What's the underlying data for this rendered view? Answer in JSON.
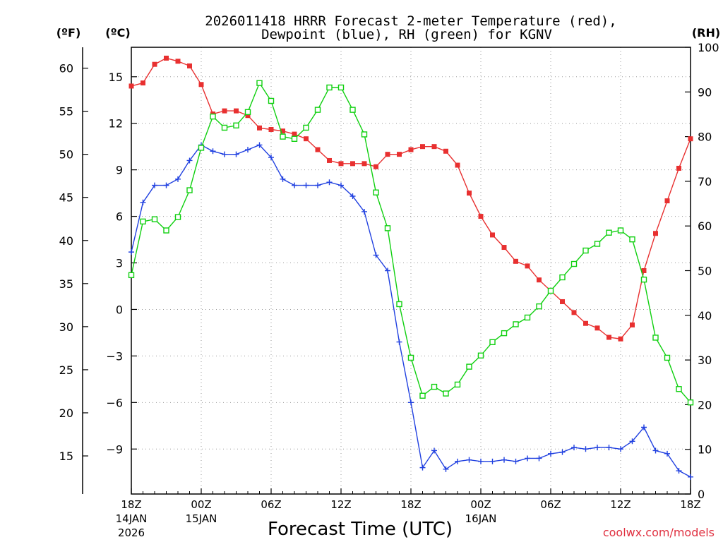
{
  "chart_data": {
    "type": "line",
    "title_line1": "2026011418 HRRR Forecast 2-meter Temperature (red),",
    "title_line2": "Dewpoint (blue), RH (green) for KGNV",
    "xlabel": "Forecast Time (UTC)",
    "credit": "coolwx.com/models",
    "unit_labels": {
      "fahrenheit": "(ºF)",
      "celsius": "(ºC)",
      "rh": "(RH)"
    },
    "forecast_hours": [
      0,
      1,
      2,
      3,
      4,
      5,
      6,
      7,
      8,
      9,
      10,
      11,
      12,
      13,
      14,
      15,
      16,
      17,
      18,
      19,
      20,
      21,
      22,
      23,
      24,
      25,
      26,
      27,
      28,
      29,
      30,
      31,
      32,
      33,
      34,
      35,
      36,
      37,
      38,
      39,
      40,
      41,
      42,
      43,
      44,
      45,
      46,
      47,
      48
    ],
    "x_ticks": [
      {
        "hour": 0,
        "label": "18Z",
        "date": "14JAN",
        "year": "2026"
      },
      {
        "hour": 6,
        "label": "00Z",
        "date": "15JAN",
        "year": ""
      },
      {
        "hour": 12,
        "label": "06Z",
        "date": "",
        "year": ""
      },
      {
        "hour": 18,
        "label": "12Z",
        "date": "",
        "year": ""
      },
      {
        "hour": 24,
        "label": "18Z",
        "date": "",
        "year": ""
      },
      {
        "hour": 30,
        "label": "00Z",
        "date": "16JAN",
        "year": ""
      },
      {
        "hour": 36,
        "label": "06Z",
        "date": "",
        "year": ""
      },
      {
        "hour": 42,
        "label": "12Z",
        "date": "",
        "year": ""
      },
      {
        "hour": 48,
        "label": "18Z",
        "date": "",
        "year": ""
      }
    ],
    "celsius_range": [
      -11.9,
      16.9
    ],
    "celsius_ticks": [
      "15",
      "12",
      "9",
      "6",
      "3",
      "0",
      "-3",
      "-6",
      "-9"
    ],
    "fahrenheit_ticks": [
      "60",
      "55",
      "50",
      "45",
      "40",
      "35",
      "30",
      "25",
      "20",
      "15"
    ],
    "rh_range": [
      0,
      100
    ],
    "rh_ticks": [
      "100",
      "90",
      "80",
      "70",
      "60",
      "50",
      "40",
      "30",
      "20",
      "10",
      "0"
    ],
    "series": [
      {
        "name": "Temperature",
        "unit": "°C",
        "color": "#e83030",
        "marker": "filled-square",
        "values": [
          14.4,
          14.6,
          15.8,
          16.2,
          16.0,
          15.7,
          14.5,
          12.6,
          12.8,
          12.8,
          12.5,
          11.7,
          11.6,
          11.5,
          11.3,
          11.0,
          10.3,
          9.6,
          9.4,
          9.4,
          9.4,
          9.2,
          10.0,
          10.0,
          10.3,
          10.5,
          10.5,
          10.2,
          9.3,
          7.5,
          6.0,
          4.8,
          4.0,
          3.1,
          2.8,
          1.9,
          1.2,
          0.5,
          -0.2,
          -0.9,
          -1.2,
          -1.8,
          -1.9,
          -1.0,
          2.5,
          4.9,
          7.0,
          9.1,
          11.0
        ]
      },
      {
        "name": "Dewpoint",
        "unit": "°C",
        "color": "#2040e0",
        "marker": "plus",
        "values": [
          3.7,
          6.9,
          8.0,
          8.0,
          8.4,
          9.6,
          10.6,
          10.2,
          10.0,
          10.0,
          10.3,
          10.6,
          9.8,
          8.4,
          8.0,
          8.0,
          8.0,
          8.2,
          8.0,
          7.3,
          6.3,
          3.5,
          2.5,
          -2.1,
          -6.0,
          -10.2,
          -9.1,
          -10.3,
          -9.8,
          -9.7,
          -9.8,
          -9.8,
          -9.7,
          -9.8,
          -9.6,
          -9.6,
          -9.3,
          -9.2,
          -8.9,
          -9.0,
          -8.9,
          -8.9,
          -9.0,
          -8.5,
          -7.6,
          -9.1,
          -9.3,
          -10.4,
          -10.8
        ]
      },
      {
        "name": "RH",
        "unit": "%",
        "color": "#10d010",
        "marker": "open-square",
        "values": [
          49,
          61,
          61.5,
          59,
          62,
          68,
          77.5,
          84.5,
          82,
          82.5,
          85.5,
          92,
          88,
          80,
          79.5,
          82,
          86,
          91,
          91,
          86,
          80.5,
          67.5,
          59.5,
          42.5,
          30.5,
          22,
          24,
          22.5,
          24.5,
          28.5,
          31,
          34,
          36,
          38,
          39.5,
          42,
          45.5,
          48.5,
          51.5,
          54.5,
          56,
          58.5,
          59,
          57,
          48,
          35,
          30.5,
          23.5,
          20.5
        ]
      }
    ]
  }
}
